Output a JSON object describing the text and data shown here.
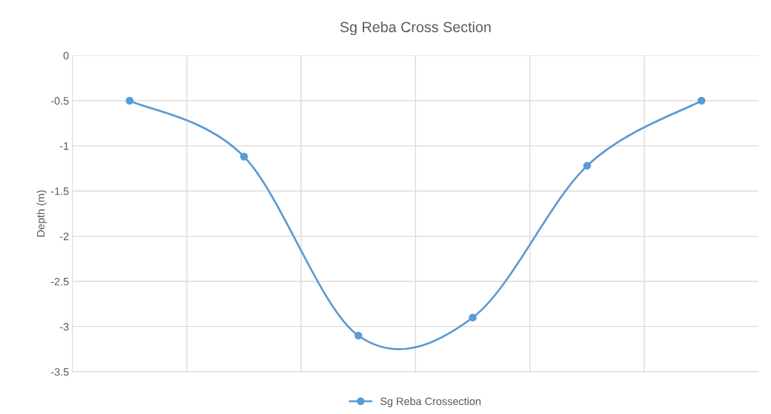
{
  "chart_data": {
    "type": "line",
    "title": "Sg Reba Cross Section",
    "ylabel": "Depth (m)",
    "categories": [
      null,
      null,
      null,
      null,
      null,
      null
    ],
    "series": [
      {
        "name": "Sg Reba Crossection",
        "color": "#5b9bd5",
        "values": [
          -0.5,
          -1.12,
          -3.1,
          -2.9,
          -1.22,
          -0.5
        ]
      }
    ],
    "ylim": [
      -3.5,
      0
    ],
    "yticks": [
      0,
      -0.5,
      -1,
      -1.5,
      -2,
      -2.5,
      -3,
      -3.5
    ],
    "grid": true,
    "legend": "bottom",
    "marker": "circle",
    "line_style": "solid",
    "tick_labels": "y"
  }
}
